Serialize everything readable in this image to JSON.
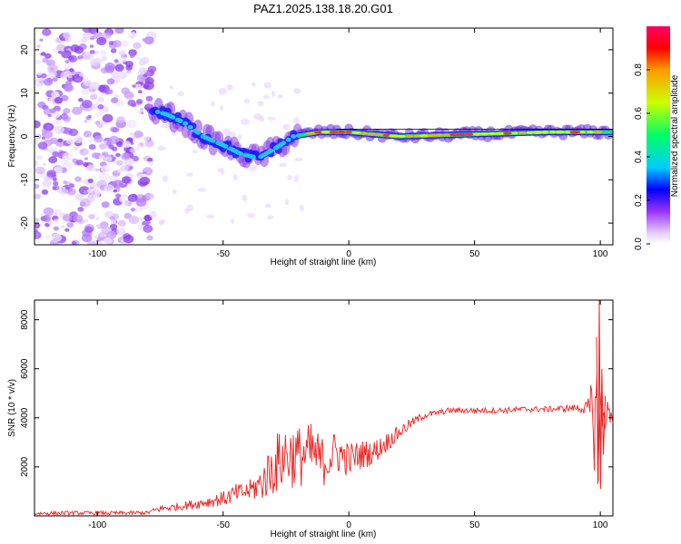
{
  "title": "PAZ1.2025.138.18.20.G01",
  "chart_data": [
    {
      "type": "heatmap",
      "xlabel": "Height of straight line (km)",
      "ylabel": "Frequency (Hz)",
      "xlim": [
        -125,
        105
      ],
      "ylim": [
        -25,
        25
      ],
      "xticks": [
        -100,
        -50,
        0,
        50,
        100
      ],
      "yticks": [
        -20,
        -10,
        0,
        10,
        20
      ],
      "colorbar": {
        "label": "Normalized spectral amplitude",
        "range": [
          0,
          1
        ],
        "ticks": [
          0.0,
          0.2,
          0.4,
          0.6,
          0.8
        ]
      },
      "ridge": [
        {
          "x": -78,
          "y": 6
        },
        {
          "x": -72,
          "y": 5
        },
        {
          "x": -65,
          "y": 3
        },
        {
          "x": -58,
          "y": 0
        },
        {
          "x": -50,
          "y": -2
        },
        {
          "x": -43,
          "y": -4
        },
        {
          "x": -36,
          "y": -5
        },
        {
          "x": -30,
          "y": -3
        },
        {
          "x": -22,
          "y": 0
        },
        {
          "x": -12,
          "y": 1
        },
        {
          "x": 0,
          "y": 1
        },
        {
          "x": 20,
          "y": 0
        },
        {
          "x": 50,
          "y": 0.5
        },
        {
          "x": 80,
          "y": 1
        },
        {
          "x": 100,
          "y": 1
        }
      ],
      "noise_region_x": [
        -125,
        -78
      ],
      "grid": false
    },
    {
      "type": "line",
      "xlabel": "Height of straight line (km)",
      "ylabel": "SNR (10 * v/v)",
      "xlim": [
        -125,
        105
      ],
      "ylim": [
        0,
        8800
      ],
      "xticks": [
        -100,
        -50,
        0,
        50,
        100
      ],
      "yticks": [
        2000,
        4000,
        6000,
        8000
      ],
      "color": "#ee2222",
      "series": [
        {
          "x": [
            -125,
            -110,
            -95,
            -80,
            -75,
            -70,
            -60,
            -50,
            -45,
            -40,
            -35,
            -30,
            -25,
            -20,
            -15,
            -10,
            -5,
            0,
            5,
            10,
            15,
            20,
            25,
            30,
            35,
            40,
            45,
            50,
            60,
            70,
            80,
            90,
            95,
            98,
            100,
            102,
            105
          ],
          "y": [
            100,
            120,
            110,
            130,
            300,
            350,
            500,
            700,
            900,
            1000,
            1300,
            2000,
            2500,
            2400,
            2600,
            2200,
            2600,
            2300,
            2500,
            2600,
            3000,
            3400,
            3800,
            4100,
            4200,
            4300,
            4300,
            4300,
            4300,
            4350,
            4350,
            4400,
            4400,
            4000,
            3500,
            4200,
            4200
          ],
          "spread": [
            80,
            80,
            80,
            80,
            150,
            150,
            200,
            300,
            400,
            400,
            700,
            1200,
            1400,
            1300,
            1200,
            1000,
            900,
            700,
            600,
            500,
            400,
            300,
            200,
            150,
            120,
            120,
            120,
            120,
            120,
            120,
            120,
            150,
            300,
            2500,
            3000,
            600,
            400
          ]
        }
      ],
      "annotations": [
        {
          "x": 100,
          "y": 8800,
          "label": ""
        },
        {
          "x": 100,
          "y": 1100,
          "label": ""
        }
      ],
      "grid": false
    }
  ]
}
